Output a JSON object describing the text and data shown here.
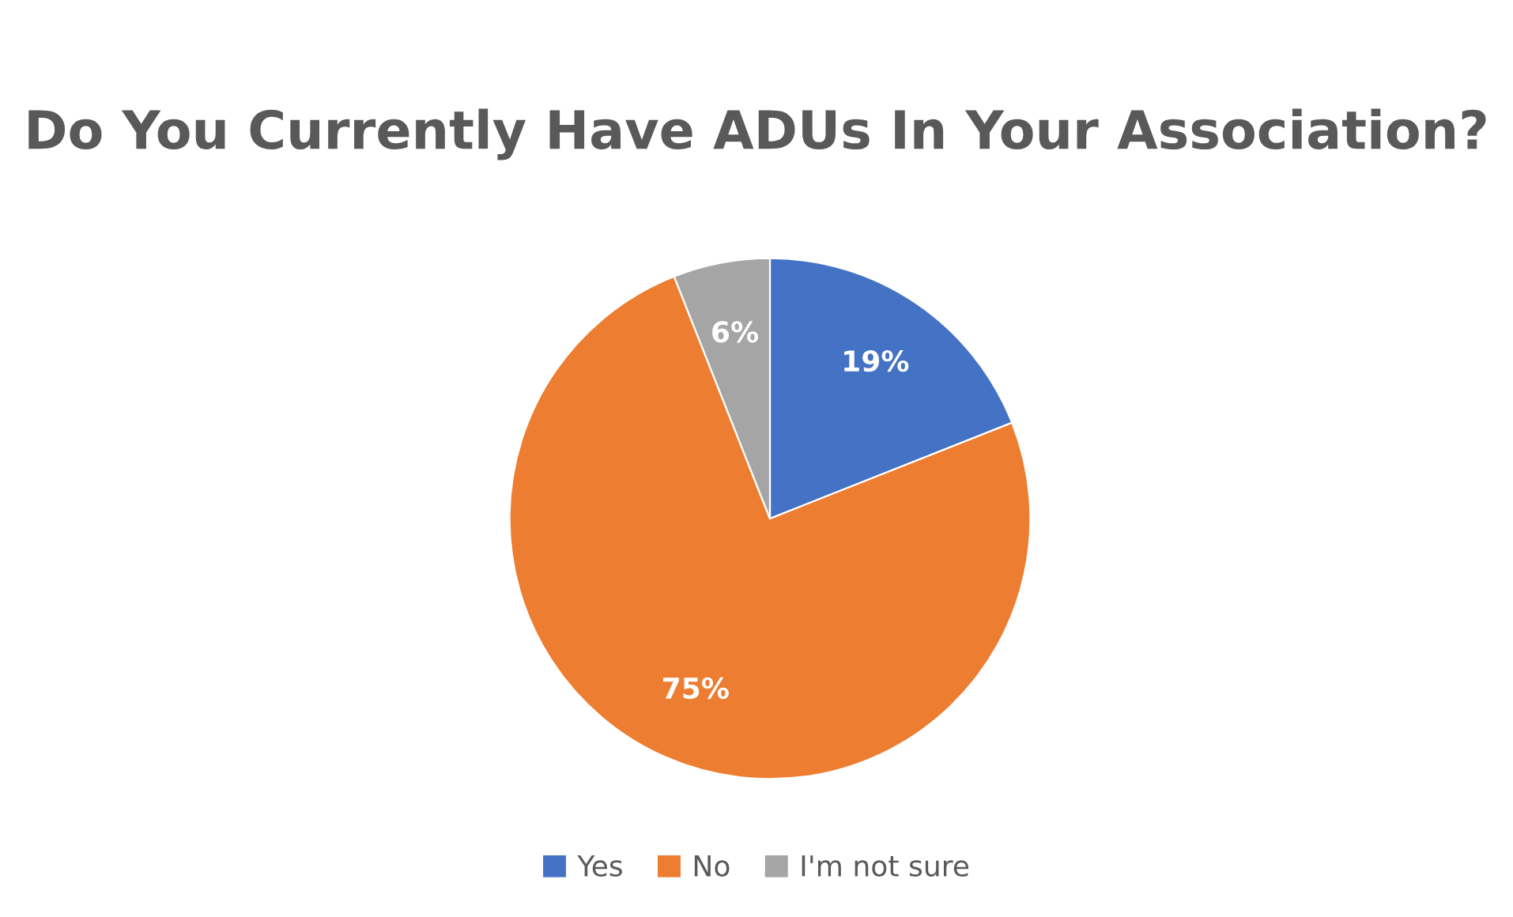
{
  "chart_data": {
    "type": "pie",
    "title": "Do You Currently Have ADUs In Your Association?",
    "categories": [
      "Yes",
      "No",
      "I'm not sure"
    ],
    "values": [
      19,
      75,
      6
    ],
    "value_labels": [
      "19%",
      "75%",
      "6%"
    ],
    "colors": [
      "#4472c4",
      "#ed7d31",
      "#a5a5a5"
    ],
    "legend": "bottom"
  }
}
